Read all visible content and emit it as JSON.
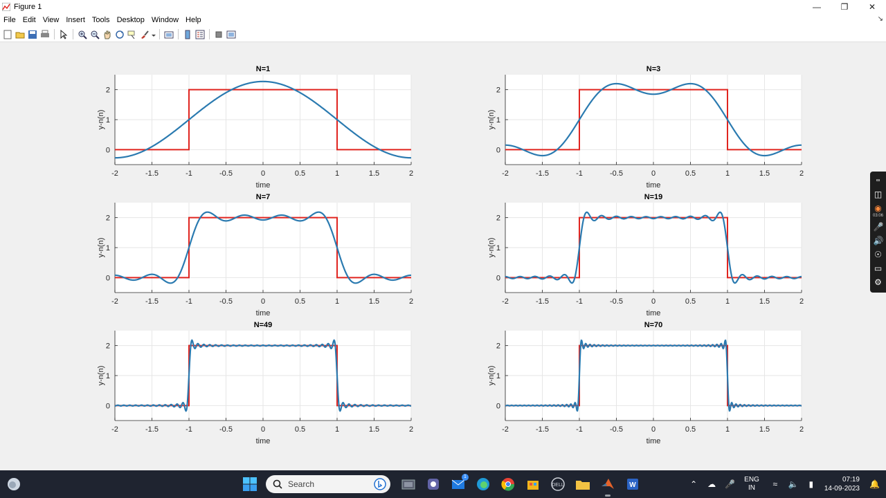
{
  "window": {
    "title": "Figure 1",
    "minimize_icon": "minimize-icon",
    "maximize_icon": "maximize-icon",
    "close_icon": "close-icon"
  },
  "menubar": {
    "items": [
      "File",
      "Edit",
      "View",
      "Insert",
      "Tools",
      "Desktop",
      "Window",
      "Help"
    ]
  },
  "toolbar": {
    "icons": [
      "new-figure-icon",
      "open-file-icon",
      "save-icon",
      "print-icon",
      "select-arrow-icon",
      "zoom-in-icon",
      "zoom-out-icon",
      "pan-hand-icon",
      "rotate-3d-icon",
      "data-cursor-icon",
      "brush-icon",
      "link-plot-icon",
      "colorbar-icon",
      "legend-icon",
      "hide-plot-tools-icon",
      "show-plot-tools-icon"
    ]
  },
  "colors": {
    "square_wave": "#e0241f",
    "fourier_series": "#2a7ab0",
    "axes_bg": "#ffffff",
    "figure_bg": "#f0f0f0",
    "grid": "#e6e6e6"
  },
  "chart_data": [
    {
      "type": "line",
      "title": "N=1",
      "N": 1,
      "xlabel": "time",
      "ylabel": "y-n(n)",
      "xlim": [
        -2,
        2
      ],
      "ylim": [
        -0.5,
        2.5
      ],
      "xticks": [
        -2,
        -1.5,
        -1,
        -0.5,
        0,
        0.5,
        1,
        1.5,
        2
      ],
      "xtick_labels": [
        "-2",
        "-1.5",
        "-1",
        "-0.5",
        "0",
        "0.5",
        "1",
        "1.5",
        "2"
      ],
      "yticks": [
        0,
        1,
        2
      ],
      "ytick_labels": [
        "0",
        "1",
        "2"
      ],
      "grid": true,
      "series": [
        {
          "kind": "square_wave",
          "x": [
            -2,
            -1,
            -1,
            1,
            1,
            2
          ],
          "y": [
            0,
            0,
            2,
            2,
            0,
            0
          ]
        },
        {
          "kind": "fourier_partial_sum",
          "terms": 1
        }
      ]
    },
    {
      "type": "line",
      "title": "N=3",
      "N": 3,
      "xlabel": "time",
      "ylabel": "y-n(n)",
      "xlim": [
        -2,
        2
      ],
      "ylim": [
        -0.5,
        2.5
      ],
      "xticks": [
        -2,
        -1.5,
        -1,
        -0.5,
        0,
        0.5,
        1,
        1.5,
        2
      ],
      "xtick_labels": [
        "-2",
        "-1.5",
        "-1",
        "-0.5",
        "0",
        "0.5",
        "1",
        "1.5",
        "2"
      ],
      "yticks": [
        0,
        1,
        2
      ],
      "ytick_labels": [
        "0",
        "1",
        "2"
      ],
      "grid": true,
      "series": [
        {
          "kind": "square_wave",
          "x": [
            -2,
            -1,
            -1,
            1,
            1,
            2
          ],
          "y": [
            0,
            0,
            2,
            2,
            0,
            0
          ]
        },
        {
          "kind": "fourier_partial_sum",
          "terms": 3
        }
      ]
    },
    {
      "type": "line",
      "title": "N=7",
      "N": 7,
      "xlabel": "time",
      "ylabel": "y-n(n)",
      "xlim": [
        -2,
        2
      ],
      "ylim": [
        -0.5,
        2.5
      ],
      "xticks": [
        -2,
        -1.5,
        -1,
        -0.5,
        0,
        0.5,
        1,
        1.5,
        2
      ],
      "xtick_labels": [
        "-2",
        "-1.5",
        "-1",
        "-0.5",
        "0",
        "0.5",
        "1",
        "1.5",
        "2"
      ],
      "yticks": [
        0,
        1,
        2
      ],
      "ytick_labels": [
        "0",
        "1",
        "2"
      ],
      "grid": true,
      "series": [
        {
          "kind": "square_wave",
          "x": [
            -2,
            -1,
            -1,
            1,
            1,
            2
          ],
          "y": [
            0,
            0,
            2,
            2,
            0,
            0
          ]
        },
        {
          "kind": "fourier_partial_sum",
          "terms": 7
        }
      ]
    },
    {
      "type": "line",
      "title": "N=19",
      "N": 19,
      "xlabel": "time",
      "ylabel": "y-n(n)",
      "xlim": [
        -2,
        2
      ],
      "ylim": [
        -0.5,
        2.5
      ],
      "xticks": [
        -2,
        -1.5,
        -1,
        -0.5,
        0,
        0.5,
        1,
        1.5,
        2
      ],
      "xtick_labels": [
        "-2",
        "-1.5",
        "-1",
        "-0.5",
        "0",
        "0.5",
        "1",
        "1.5",
        "2"
      ],
      "yticks": [
        0,
        1,
        2
      ],
      "ytick_labels": [
        "0",
        "1",
        "2"
      ],
      "grid": true,
      "series": [
        {
          "kind": "square_wave",
          "x": [
            -2,
            -1,
            -1,
            1,
            1,
            2
          ],
          "y": [
            0,
            0,
            2,
            2,
            0,
            0
          ]
        },
        {
          "kind": "fourier_partial_sum",
          "terms": 19
        }
      ]
    },
    {
      "type": "line",
      "title": "N=49",
      "N": 49,
      "xlabel": "time",
      "ylabel": "y-n(n)",
      "xlim": [
        -2,
        2
      ],
      "ylim": [
        -0.5,
        2.5
      ],
      "xticks": [
        -2,
        -1.5,
        -1,
        -0.5,
        0,
        0.5,
        1,
        1.5,
        2
      ],
      "xtick_labels": [
        "-2",
        "-1.5",
        "-1",
        "-0.5",
        "0",
        "0.5",
        "1",
        "1.5",
        "2"
      ],
      "yticks": [
        0,
        1,
        2
      ],
      "ytick_labels": [
        "0",
        "1",
        "2"
      ],
      "grid": true,
      "series": [
        {
          "kind": "square_wave",
          "x": [
            -2,
            -1,
            -1,
            1,
            1,
            2
          ],
          "y": [
            0,
            0,
            2,
            2,
            0,
            0
          ]
        },
        {
          "kind": "fourier_partial_sum",
          "terms": 49
        }
      ]
    },
    {
      "type": "line",
      "title": "N=70",
      "N": 70,
      "xlabel": "time",
      "ylabel": "y-n(n)",
      "xlim": [
        -2,
        2
      ],
      "ylim": [
        -0.5,
        2.5
      ],
      "xticks": [
        -2,
        -1.5,
        -1,
        -0.5,
        0,
        0.5,
        1,
        1.5,
        2
      ],
      "xtick_labels": [
        "-2",
        "-1.5",
        "-1",
        "-0.5",
        "0",
        "0.5",
        "1",
        "1.5",
        "2"
      ],
      "yticks": [
        0,
        1,
        2
      ],
      "ytick_labels": [
        "0",
        "1",
        "2"
      ],
      "grid": true,
      "series": [
        {
          "kind": "square_wave",
          "x": [
            -2,
            -1,
            -1,
            1,
            1,
            2
          ],
          "y": [
            0,
            0,
            2,
            2,
            0,
            0
          ]
        },
        {
          "kind": "fourier_partial_sum",
          "terms": 70
        }
      ]
    }
  ],
  "side_widget": {
    "timer": "03:06"
  },
  "taskbar": {
    "search_placeholder": "Search",
    "apps": [
      "file-explorer-icon",
      "teams-icon",
      "mail-icon",
      "edge-icon",
      "chrome-icon",
      "store-icon",
      "dell-icon",
      "folder-icon",
      "matlab-icon",
      "word-icon"
    ],
    "mail_badge": "1",
    "lang_top": "ENG",
    "lang_bottom": "IN",
    "time": "07:19",
    "date": "14-09-2023"
  }
}
